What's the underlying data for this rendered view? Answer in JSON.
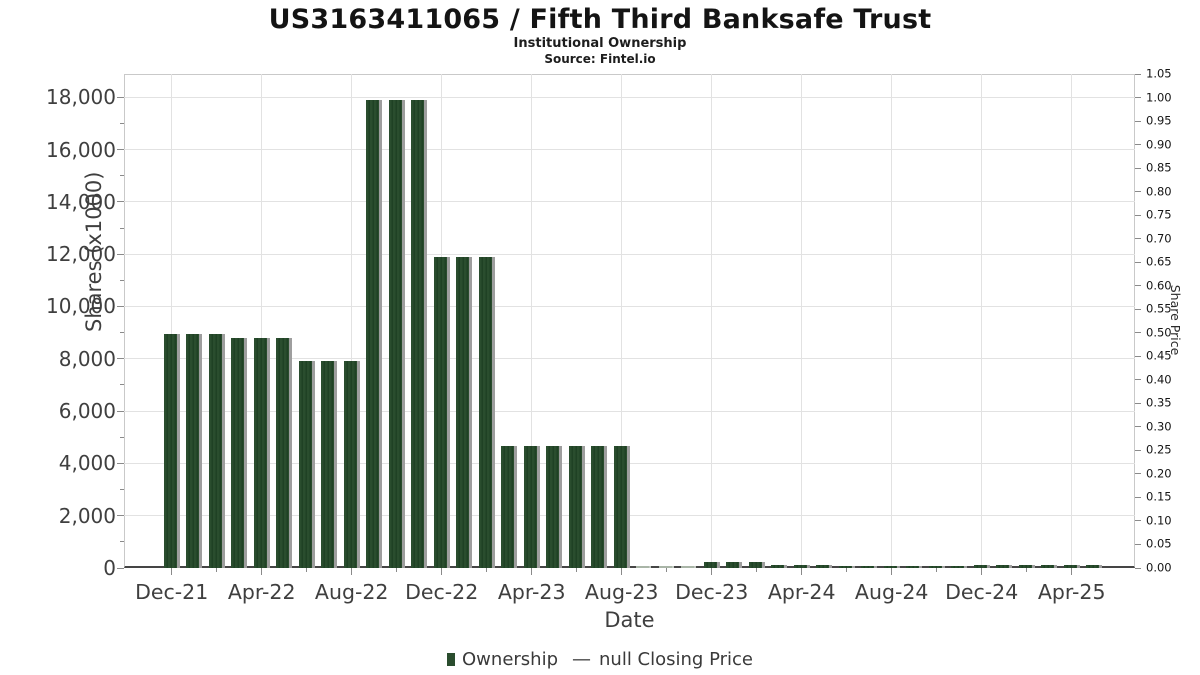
{
  "header": {
    "title": "US3163411065 / Fifth Third Banksafe Trust",
    "subtitle": "Institutional Ownership",
    "source": "Source: Fintel.io"
  },
  "chart_data": {
    "type": "bar",
    "title": "US3163411065 / Fifth Third Banksafe Trust",
    "subtitle": "Institutional Ownership",
    "source": "Source: Fintel.io",
    "xlabel": "Date",
    "ylabel_left": "Shares (x1000)",
    "ylabel_right": "Share Price",
    "ylim_left": [
      0,
      18890
    ],
    "ylim_right": [
      0,
      1.05
    ],
    "grid": true,
    "legend_position": "bottom-center",
    "categories": [
      "Dec-21",
      "Jan-22",
      "Feb-22",
      "Mar-22",
      "Apr-22",
      "May-22",
      "Jun-22",
      "Jul-22",
      "Aug-22",
      "Sep-22",
      "Oct-22",
      "Nov-22",
      "Dec-22",
      "Jan-23",
      "Feb-23",
      "Mar-23",
      "Apr-23",
      "May-23",
      "Jun-23",
      "Jul-23",
      "Aug-23",
      "Sep-23",
      "Oct-23",
      "Nov-23",
      "Dec-23",
      "Jan-24",
      "Feb-24",
      "Mar-24",
      "Apr-24",
      "May-24",
      "Jun-24",
      "Jul-24",
      "Aug-24",
      "Sep-24",
      "Oct-24",
      "Nov-24",
      "Dec-24",
      "Jan-25",
      "Feb-25",
      "Mar-25",
      "Apr-25",
      "May-25"
    ],
    "values": [
      8950,
      8950,
      8950,
      8800,
      8800,
      8800,
      7900,
      7900,
      7900,
      17900,
      17900,
      17900,
      11900,
      11900,
      11900,
      4650,
      4650,
      4650,
      4650,
      4650,
      4650,
      60,
      60,
      60,
      230,
      230,
      230,
      100,
      100,
      100,
      60,
      60,
      70,
      70,
      70,
      70,
      120,
      120,
      120,
      120,
      120,
      120
    ],
    "muted_indices": [
      21,
      22,
      23
    ],
    "series_name": "Ownership",
    "xtick_labels": [
      "Dec-21",
      "Apr-22",
      "Aug-22",
      "Dec-22",
      "Apr-23",
      "Aug-23",
      "Dec-23",
      "Apr-24",
      "Aug-24",
      "Dec-24",
      "Apr-25"
    ],
    "xtick_every": 4,
    "ytick_values_left": [
      0,
      2000,
      4000,
      6000,
      8000,
      10000,
      12000,
      14000,
      16000,
      18000
    ],
    "yticks_left": [
      "0",
      "2,000",
      "4,000",
      "6,000",
      "8,000",
      "10,000",
      "12,000",
      "14,000",
      "16,000",
      "18,000"
    ],
    "yticks_right": [
      "0.00",
      "0.05",
      "0.10",
      "0.15",
      "0.20",
      "0.25",
      "0.30",
      "0.35",
      "0.40",
      "0.45",
      "0.50",
      "0.55",
      "0.60",
      "0.65",
      "0.70",
      "0.75",
      "0.80",
      "0.85",
      "0.90",
      "0.95",
      "1.00",
      "1.05"
    ],
    "colors": {
      "bar": "#2a4d2e",
      "bar_stripe": "#1f4124",
      "bar_shadow": "#9e9e9e",
      "bar_muted": "#a9b5a7",
      "grid": "#e2e2e2",
      "axis_line": "#454545",
      "plot_border": "#c9c9c9",
      "tick_label": "#3f3f3f"
    },
    "legend": {
      "ownership_label": "Ownership",
      "dash": "—",
      "price_label": "null Closing Price"
    }
  }
}
